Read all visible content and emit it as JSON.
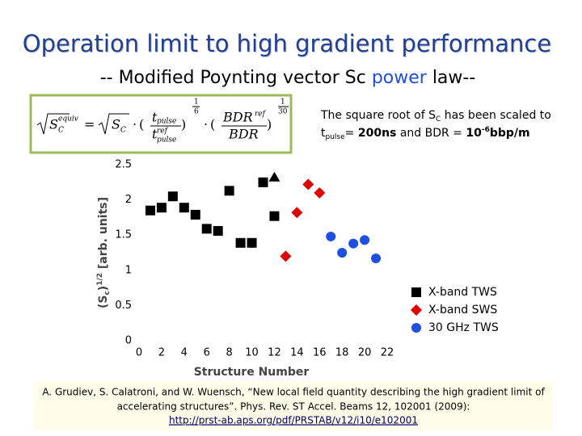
{
  "title": "Operation limit to high gradient performance",
  "subtitle": {
    "before": "-- Modified Poynting vector Sc ",
    "highlight": "power",
    "after": " law--"
  },
  "formula": {
    "lhs": "S",
    "lhs_sup": "equiv",
    "lhs_sub": "C",
    "eq": "=",
    "s": "S",
    "s_sub": "C",
    "dot": "·",
    "t": "t",
    "pulse": "pulse",
    "ref": "ref",
    "e1_num": "1",
    "e1_den": "6",
    "bdr": "BDR",
    "e2_num": "1",
    "e2_den": "30"
  },
  "note": {
    "a": "The square root of S",
    "a_sub": "C",
    "b": " has been scaled to",
    "t": "t",
    "t_sub": "pulse",
    "c": "= ",
    "d": "200ns",
    "e": " and BDR = ",
    "f": "10",
    "f_sup": "-6",
    "g": "bbp/m"
  },
  "chart_data": {
    "type": "scatter",
    "x_label": "Structure Number",
    "y_label": [
      "(S",
      "c",
      ")",
      "1/2",
      " [arb. units]"
    ],
    "xlim": [
      0,
      22
    ],
    "xticks": [
      0,
      2,
      4,
      6,
      8,
      10,
      12,
      14,
      16,
      18,
      20,
      22
    ],
    "ylim": [
      0,
      2.5
    ],
    "yticks": [
      0,
      0.5,
      1,
      1.5,
      2,
      2.5
    ],
    "grid": false,
    "series": [
      {
        "name": "X-band TWS",
        "color": "#000000",
        "marker": "square",
        "x": [
          1,
          2,
          3,
          4,
          5,
          6,
          7,
          8,
          9,
          10,
          11,
          12
        ],
        "values": [
          1.85,
          1.89,
          2.05,
          1.89,
          1.79,
          1.59,
          1.56,
          2.13,
          1.39,
          1.39,
          2.25,
          1.77
        ]
      },
      {
        "color": "#000000",
        "marker": "triangle",
        "x": [
          12
        ],
        "values": [
          2.32
        ]
      },
      {
        "name": "X-band SWS",
        "color": "#e00000",
        "marker": "diamond",
        "x": [
          13,
          14,
          15,
          16
        ],
        "values": [
          1.2,
          1.82,
          2.22,
          2.1
        ]
      },
      {
        "name": "30 GHz TWS",
        "color": "#1f4fe0",
        "marker": "circle",
        "x": [
          17,
          18,
          19,
          20,
          21
        ],
        "values": [
          1.48,
          1.25,
          1.38,
          1.43,
          1.17
        ]
      }
    ]
  },
  "reference": [
    "A. Grudiev, S. Calatroni, and W. Wuensch, “New local field quantity describing the high gradient limit of",
    "accelerating structures”. Phys. Rev. ST Accel. Beams 12, 102001 (2009):",
    "http://prst-ab.aps.org/pdf/PRSTAB/v12/i10/e102001"
  ]
}
